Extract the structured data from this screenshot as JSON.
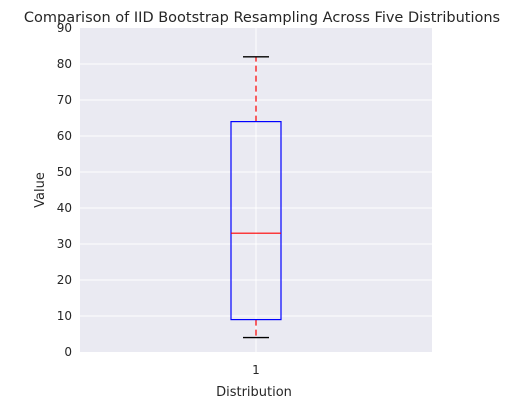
{
  "chart_data": {
    "type": "box",
    "title": "Comparison of IID Bootstrap Resampling Across Five Distributions",
    "xlabel": "Distribution",
    "ylabel": "Value",
    "categories": [
      "1"
    ],
    "ylim": [
      0,
      90
    ],
    "yticks": [
      0,
      10,
      20,
      30,
      40,
      50,
      60,
      70,
      80,
      90
    ],
    "boxes": [
      {
        "category": "1",
        "whisker_low": 4,
        "q1": 9,
        "median": 33,
        "q3": 64,
        "whisker_high": 82
      }
    ],
    "grid": "y",
    "colors": {
      "background": "#eaeaf2",
      "grid": "#ffffff",
      "box": "#0000ff",
      "median": "#ff0000",
      "whisker": "#ff0000",
      "cap": "#000000"
    }
  }
}
